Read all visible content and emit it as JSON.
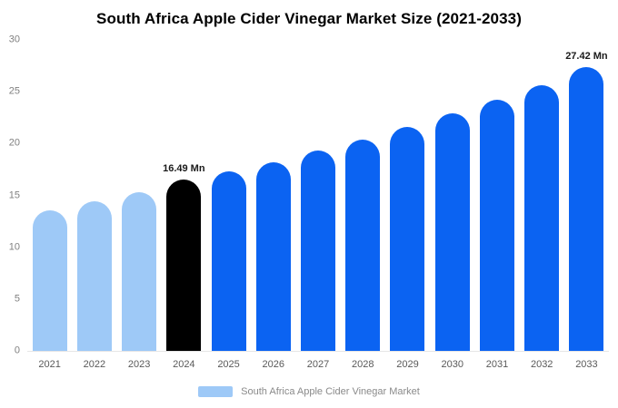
{
  "header": {
    "title": "South Africa Apple Cider Vinegar Market Size (2021-2033)"
  },
  "legend": {
    "label": "South Africa Apple Cider Vinegar Market"
  },
  "colors": {
    "historical_bar": "#9EC9F7",
    "highlight_bar": "#000000",
    "forecast_bar": "#0B63F2",
    "axis_text": "#808080",
    "annotation_text": "#1a1a1a",
    "legend_text": "#8a8a8a",
    "baseline": "#e6e6e6"
  },
  "chart_data": {
    "type": "bar",
    "title": "South Africa Apple Cider Vinegar Market Size (2021-2033)",
    "unit": "Mn",
    "categories": [
      "2021",
      "2022",
      "2023",
      "2024",
      "2025",
      "2026",
      "2027",
      "2028",
      "2029",
      "2030",
      "2031",
      "2032",
      "2033"
    ],
    "values": [
      13.6,
      14.45,
      15.3,
      16.49,
      17.3,
      18.2,
      19.3,
      20.4,
      21.6,
      22.9,
      24.2,
      25.6,
      27.42
    ],
    "bar_colors": [
      "#9EC9F7",
      "#9EC9F7",
      "#9EC9F7",
      "#000000",
      "#0B63F2",
      "#0B63F2",
      "#0B63F2",
      "#0B63F2",
      "#0B63F2",
      "#0B63F2",
      "#0B63F2",
      "#0B63F2",
      "#0B63F2"
    ],
    "annotations": [
      {
        "category": "2024",
        "text": "16.49 Mn"
      },
      {
        "category": "2033",
        "text": "27.42 Mn"
      }
    ],
    "xlabel": "",
    "ylabel": "",
    "ylim": [
      0,
      30
    ],
    "yticks": [
      0,
      5,
      10,
      15,
      20,
      25,
      30
    ],
    "grid": false,
    "legend_entries": [
      {
        "label": "South Africa Apple Cider Vinegar Market",
        "color": "#9EC9F7"
      }
    ],
    "legend_position": "bottom"
  }
}
